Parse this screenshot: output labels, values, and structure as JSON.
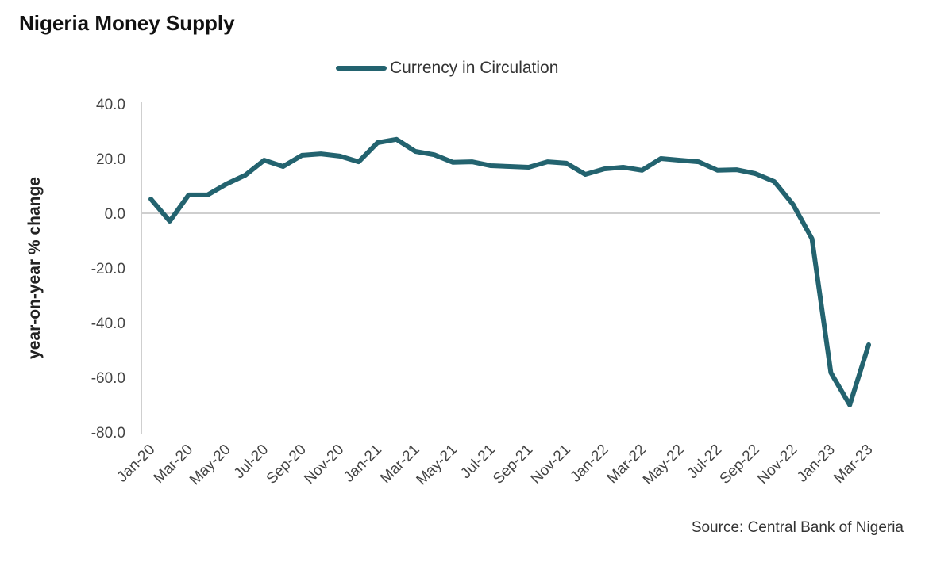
{
  "chart_data": {
    "type": "line",
    "title": "Nigeria Money  Supply",
    "xlabel": "",
    "ylabel": "year-on-year % change",
    "ylim": [
      -80,
      40
    ],
    "yticks": [
      40,
      20,
      0,
      -20,
      -40,
      -60,
      -80
    ],
    "ytick_labels": [
      "40.0",
      "20.0",
      "0.0",
      "-20.0",
      "-40.0",
      "-60.0",
      "-80.0"
    ],
    "grid": false,
    "legend": "top-center",
    "source": "Source: Central Bank of Nigeria",
    "categories": [
      "Jan-20",
      "Feb-20",
      "Mar-20",
      "Apr-20",
      "May-20",
      "Jun-20",
      "Jul-20",
      "Aug-20",
      "Sep-20",
      "Oct-20",
      "Nov-20",
      "Dec-20",
      "Jan-21",
      "Feb-21",
      "Mar-21",
      "Apr-21",
      "May-21",
      "Jun-21",
      "Jul-21",
      "Aug-21",
      "Sep-21",
      "Oct-21",
      "Nov-21",
      "Dec-21",
      "Jan-22",
      "Feb-22",
      "Mar-22",
      "Apr-22",
      "May-22",
      "Jun-22",
      "Jul-22",
      "Aug-22",
      "Sep-22",
      "Oct-22",
      "Nov-22",
      "Dec-22",
      "Jan-23",
      "Feb-23",
      "Mar-23"
    ],
    "xtick_labels": [
      "Jan-20",
      "Mar-20",
      "May-20",
      "Jul-20",
      "Sep-20",
      "Nov-20",
      "Jan-21",
      "Mar-21",
      "May-21",
      "Jul-21",
      "Sep-21",
      "Nov-21",
      "Jan-22",
      "Mar-22",
      "May-22",
      "Jul-22",
      "Sep-22",
      "Nov-22",
      "Jan-23",
      "Mar-23"
    ],
    "series": [
      {
        "name": "Currency in Circulation",
        "color": "#23636f",
        "values": [
          5.2,
          -2.9,
          6.7,
          6.7,
          10.7,
          13.9,
          19.4,
          17.1,
          21.2,
          21.7,
          20.9,
          18.8,
          25.8,
          27.0,
          22.6,
          21.4,
          18.6,
          18.8,
          17.4,
          17.1,
          16.8,
          18.8,
          18.3,
          14.2,
          16.2,
          16.8,
          15.7,
          20.0,
          19.4,
          18.8,
          15.7,
          15.9,
          14.5,
          11.6,
          3.2,
          -9.3,
          -58.3,
          -70.1,
          -48.1
        ]
      }
    ]
  }
}
